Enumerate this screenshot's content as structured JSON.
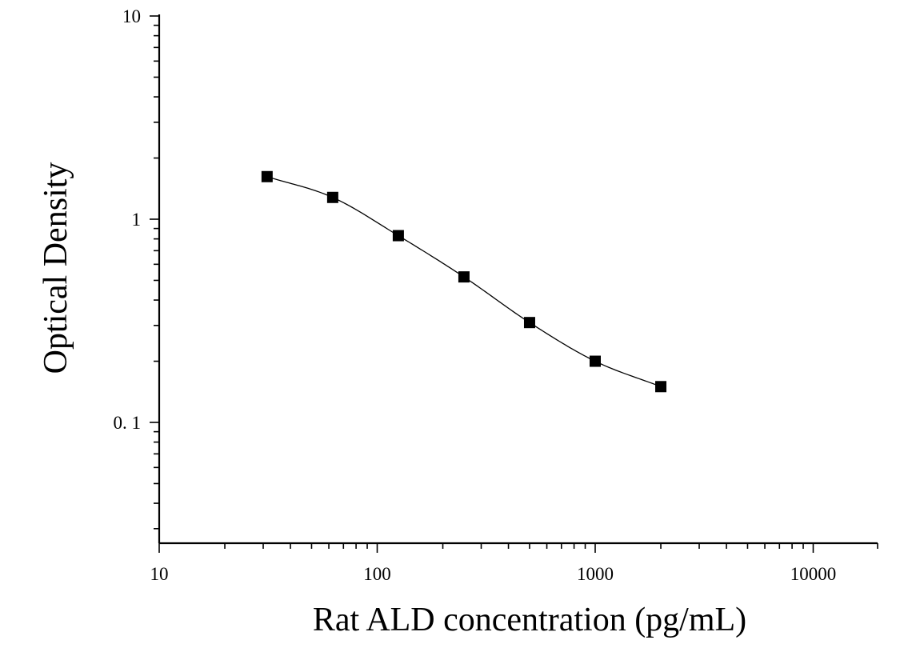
{
  "chart_data": {
    "type": "scatter",
    "xlabel": "Rat ALD concentration (pg/mL)",
    "ylabel": "Optical Density",
    "x_scale": "log",
    "y_scale": "log",
    "xlim": [
      10,
      20000
    ],
    "ylim": [
      0.025,
      10
    ],
    "x_tick_labels": [
      {
        "value": 10,
        "label": "10"
      },
      {
        "value": 100,
        "label": "100"
      },
      {
        "value": 1000,
        "label": "1000"
      },
      {
        "value": 10000,
        "label": "10000"
      }
    ],
    "y_tick_labels": [
      {
        "value": 10,
        "label": "10"
      },
      {
        "value": 1,
        "label": "1"
      },
      {
        "value": 0.1,
        "label": "0. 1"
      }
    ],
    "grid": false,
    "legend": "none",
    "series": [
      {
        "x": [
          31.25,
          62.5,
          125,
          250,
          500,
          1000,
          2000
        ],
        "y": [
          1.62,
          1.28,
          0.83,
          0.52,
          0.31,
          0.2,
          0.15
        ],
        "marker": "square",
        "color": "#000000",
        "fit": "four-parameter logistic curve"
      }
    ]
  }
}
